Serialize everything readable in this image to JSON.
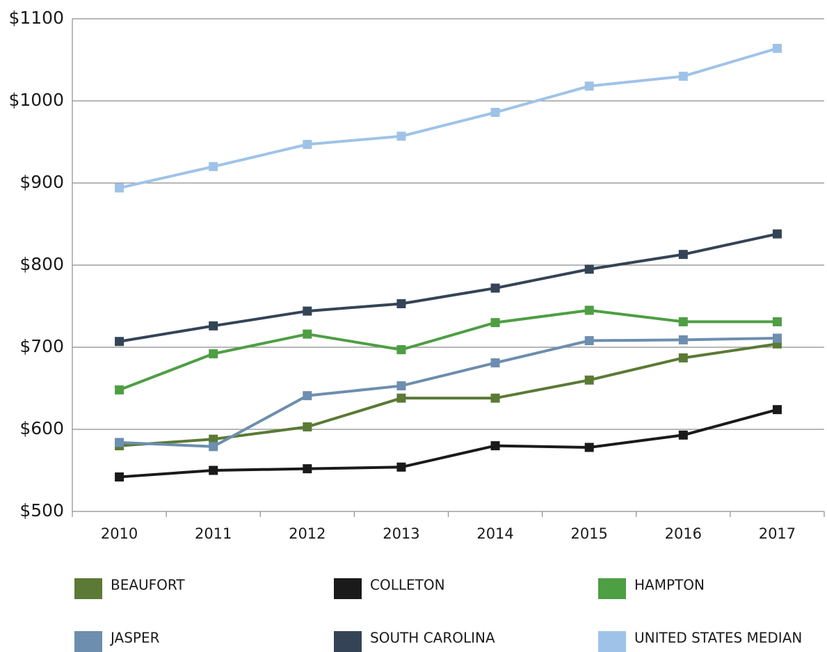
{
  "chart_data": {
    "type": "line",
    "categories": [
      "2010",
      "2011",
      "2012",
      "2013",
      "2014",
      "2015",
      "2016",
      "2017"
    ],
    "series": [
      {
        "name": "BEAUFORT",
        "color": "#5a7a35",
        "values": [
          580,
          588,
          603,
          638,
          638,
          660,
          687,
          704
        ]
      },
      {
        "name": "COLLETON",
        "color": "#1a1a1a",
        "values": [
          542,
          550,
          552,
          554,
          580,
          578,
          593,
          624
        ]
      },
      {
        "name": "HAMPTON",
        "color": "#4e9e44",
        "values": [
          648,
          692,
          716,
          697,
          730,
          745,
          731,
          731
        ]
      },
      {
        "name": "JASPER",
        "color": "#6d8eae",
        "values": [
          584,
          579,
          641,
          653,
          681,
          708,
          709,
          711
        ]
      },
      {
        "name": "SOUTH CAROLINA",
        "color": "#344456",
        "values": [
          707,
          726,
          744,
          753,
          772,
          795,
          813,
          838
        ]
      },
      {
        "name": "UNITED STATES MEDIAN",
        "color": "#9fc3e8",
        "values": [
          894,
          920,
          947,
          957,
          986,
          1018,
          1030,
          1064
        ]
      }
    ],
    "ylim": [
      500,
      1100
    ],
    "yticks": [
      {
        "value": 500,
        "label": "$500"
      },
      {
        "value": 600,
        "label": "$600"
      },
      {
        "value": 700,
        "label": "$700"
      },
      {
        "value": 800,
        "label": "$800"
      },
      {
        "value": 900,
        "label": "$900"
      },
      {
        "value": 1000,
        "label": "$1000"
      },
      {
        "value": 1100,
        "label": "$1100"
      }
    ],
    "grid": true,
    "legend": "bottom"
  }
}
